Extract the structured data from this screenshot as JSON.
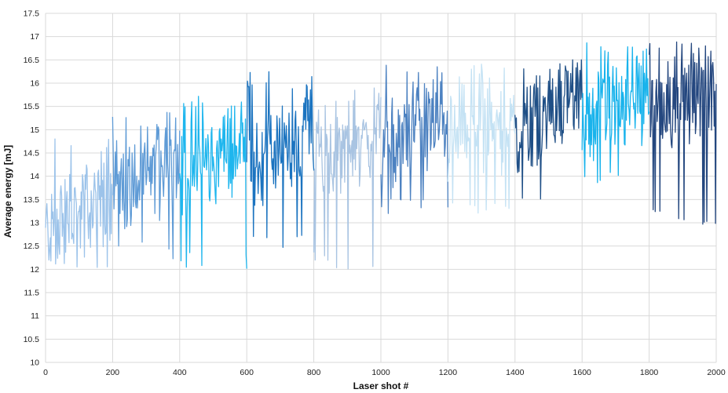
{
  "chart_data": {
    "type": "line",
    "title": "",
    "xlabel": "Laser shot #",
    "ylabel": "Average energy [mJ]",
    "xlim": [
      0,
      2000
    ],
    "ylim": [
      10,
      17.5
    ],
    "x_ticks": [
      "0",
      "200",
      "400",
      "600",
      "800",
      "1000",
      "1200",
      "1400",
      "1600",
      "1800",
      "2000"
    ],
    "y_ticks": [
      "10",
      "10.5",
      "11",
      "11.5",
      "12",
      "12.5",
      "13",
      "13.5",
      "14",
      "14.5",
      "15",
      "15.5",
      "16",
      "16.5",
      "17",
      "17.5"
    ],
    "grid": true,
    "legend": "none",
    "series": [
      {
        "range": [
          0,
          200
        ],
        "mean": [
          12.8,
          13.7
        ],
        "spread": [
          12.0,
          14.9
        ],
        "color": "#9cc3ea"
      },
      {
        "range": [
          200,
          400
        ],
        "mean": [
          13.6,
          14.5
        ],
        "spread": [
          12.2,
          15.5
        ],
        "color": "#5f9bd6"
      },
      {
        "range": [
          400,
          600
        ],
        "mean": [
          13.9,
          14.8
        ],
        "spread": [
          12.0,
          15.8
        ],
        "color": "#1fb6ee"
      },
      {
        "range": [
          600,
          800
        ],
        "mean": [
          14.0,
          15.2
        ],
        "spread": [
          12.4,
          16.3
        ],
        "color": "#1c74c0"
      },
      {
        "range": [
          800,
          1000
        ],
        "mean": [
          14.5,
          14.9
        ],
        "spread": [
          12.0,
          15.9
        ],
        "color": "#a9c4e2"
      },
      {
        "range": [
          1000,
          1200
        ],
        "mean": [
          14.5,
          15.4
        ],
        "spread": [
          13.2,
          16.6
        ],
        "color": "#4d82c1"
      },
      {
        "range": [
          1200,
          1400
        ],
        "mean": [
          14.8,
          15.2
        ],
        "spread": [
          13.1,
          16.5
        ],
        "color": "#c4e2f4"
      },
      {
        "range": [
          1400,
          1600
        ],
        "mean": [
          15.0,
          15.8
        ],
        "spread": [
          13.2,
          16.5
        ],
        "color": "#1f4f86"
      },
      {
        "range": [
          1600,
          1800
        ],
        "mean": [
          15.0,
          15.8
        ],
        "spread": [
          13.8,
          16.9
        ],
        "color": "#19b3ec"
      },
      {
        "range": [
          1800,
          2000
        ],
        "mean": [
          15.5,
          16.0
        ],
        "spread": [
          12.9,
          16.9
        ],
        "color": "#24477f"
      }
    ]
  }
}
